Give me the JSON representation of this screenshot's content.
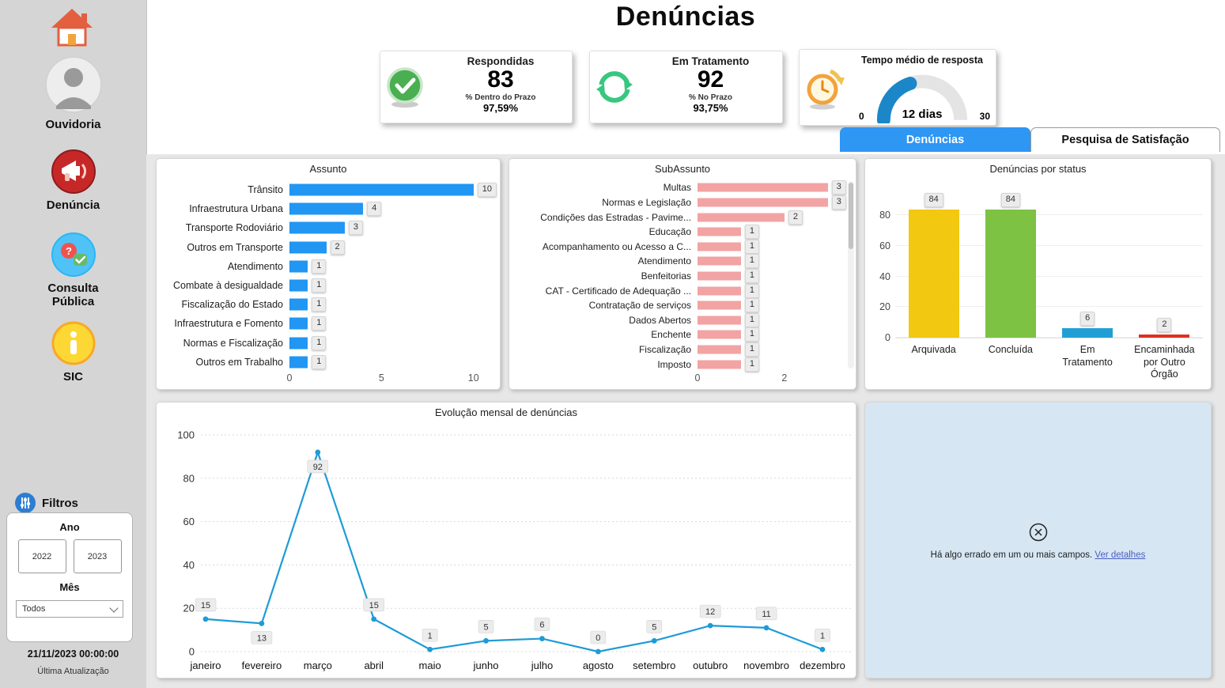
{
  "header": {
    "title": "Denúncias"
  },
  "theme": {
    "tab_active_color": "#2e96f3",
    "sidebar_bg": "#d5d5d5",
    "content_bg": "#e7e7e7",
    "error_panel_bg": "#d7e6f3"
  },
  "icons": {
    "home": "house-icon",
    "ouvidoria": "person-avatar-icon",
    "denuncia": "megaphone-icon",
    "consulta_publica": "question-check-bubbles-icon",
    "sic": "info-icon",
    "filters": "sliders-icon",
    "kpi_respondidas": "check-circle-icon",
    "kpi_em_tratamento": "refresh-arrows-icon",
    "kpi_tempo": "clock-icon",
    "error": "circle-x-icon"
  },
  "sidebar": {
    "items": [
      {
        "label": "Ouvidoria",
        "icon": "person-avatar-icon"
      },
      {
        "label": "Denúncia",
        "icon": "megaphone-icon"
      },
      {
        "label": "Consulta Pública",
        "icon": "question-check-bubbles-icon"
      },
      {
        "label": "SIC",
        "icon": "info-icon"
      }
    ],
    "filters": {
      "title": "Filtros",
      "year_label": "Ano",
      "years": [
        "2022",
        "2023"
      ],
      "month_label": "Mês",
      "month_value": "Todos"
    },
    "last_update": {
      "value": "21/11/2023 00:00:00",
      "label": "Última Atualização"
    }
  },
  "kpis": {
    "cards": [
      {
        "title": "Respondidas",
        "value": "83",
        "subtitle": "% Dentro do Prazo",
        "subvalue": "97,59%"
      },
      {
        "title": "Em Tratamento",
        "value": "92",
        "subtitle": "% No Prazo",
        "subvalue": "93,75%"
      }
    ],
    "gauge": {
      "title": "Tempo médio de resposta",
      "value": 12,
      "max_value": 30,
      "min_label": "0",
      "max_label": "30",
      "value_label": "12 dias",
      "color": "#1b87c9"
    }
  },
  "tabs": [
    {
      "label": "Denúncias",
      "active": true
    },
    {
      "label": "Pesquisa de Satisfação",
      "active": false
    }
  ],
  "chart_data": [
    {
      "type": "bar",
      "orientation": "horizontal",
      "title": "Assunto",
      "categories": [
        "Trânsito",
        "Infraestrutura Urbana",
        "Transporte Rodoviário",
        "Outros em Transporte",
        "Atendimento",
        "Combate à desigualdade",
        "Fiscalização do Estado",
        "Infraestrutura e Fomento",
        "Normas e Fiscalização",
        "Outros em Trabalho"
      ],
      "values": [
        10,
        4,
        3,
        2,
        1,
        1,
        1,
        1,
        1,
        1
      ],
      "bar_color": "#2196f3",
      "xticks": [
        0,
        5,
        10
      ],
      "scale_max": 11,
      "xlim": [
        0,
        11
      ]
    },
    {
      "type": "bar",
      "orientation": "horizontal",
      "title": "SubAssunto",
      "categories": [
        "Multas",
        "Normas e Legislação",
        "Condições das Estradas - Pavime...",
        "Educação",
        "Acompanhamento ou Acesso a C...",
        "Atendimento",
        "Benfeitorias",
        "CAT - Certificado de Adequação ...",
        "Contratação de serviços",
        "Dados Abertos",
        "Enchente",
        "Fiscalização",
        "Imposto"
      ],
      "values": [
        3,
        3,
        2,
        1,
        1,
        1,
        1,
        1,
        1,
        1,
        1,
        1,
        1
      ],
      "bar_color": "#f2a3a3",
      "xticks": [
        0,
        2
      ],
      "scale_max": 3.35,
      "xlim": [
        0,
        3.35
      ],
      "has_scrollbar": true
    },
    {
      "type": "bar",
      "orientation": "vertical",
      "title": "Denúncias por status",
      "categories": [
        "Arquivada",
        "Concluída",
        "Em Tratamento",
        "Encaminhada por Outro Órgão"
      ],
      "values": [
        84,
        84,
        6,
        2
      ],
      "colors": [
        "#f2c811",
        "#7dc243",
        "#219fd5",
        "#e0301e"
      ],
      "yticks": [
        0,
        20,
        40,
        60,
        80
      ],
      "scale_max": 88,
      "ylim": [
        0,
        88
      ]
    },
    {
      "type": "line",
      "title": "Evolução mensal de denúncias",
      "categories": [
        "janeiro",
        "fevereiro",
        "março",
        "abril",
        "maio",
        "junho",
        "julho",
        "agosto",
        "setembro",
        "outubro",
        "novembro",
        "dezembro"
      ],
      "values": [
        15,
        13,
        92,
        15,
        1,
        5,
        6,
        0,
        5,
        12,
        11,
        1
      ],
      "line_color": "#1e9bd7",
      "yticks": [
        0,
        20,
        40,
        60,
        80,
        100
      ],
      "ymax": 100,
      "ylim": [
        0,
        100
      ],
      "grid": "horizontal-dotted",
      "label_positions": [
        "above",
        "below",
        "below",
        "above",
        "above",
        "above",
        "above",
        "above",
        "above",
        "above",
        "above",
        "above"
      ]
    }
  ],
  "error_panel": {
    "message": "Há algo errado em um ou mais campos.",
    "link_label": "Ver detalhes"
  }
}
